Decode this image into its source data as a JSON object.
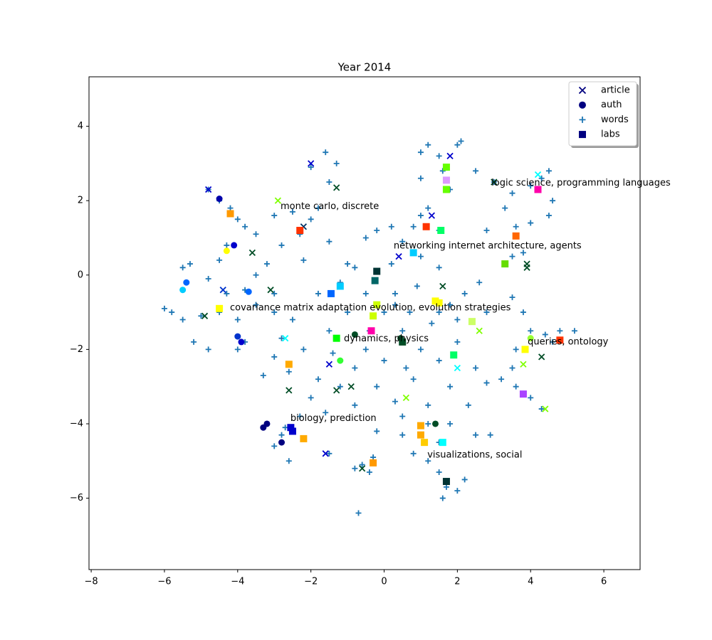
{
  "chart_data": {
    "type": "scatter",
    "title": "Year 2014",
    "xlim": [
      -8.06,
      6.99
    ],
    "ylim": [
      -7.92,
      5.33
    ],
    "xticks": [
      {
        "value": -8,
        "label": "−8"
      },
      {
        "value": -6,
        "label": "−6"
      },
      {
        "value": -4,
        "label": "−4"
      },
      {
        "value": -2,
        "label": "−2"
      },
      0,
      2,
      4,
      6
    ],
    "yticks": [
      {
        "value": -6,
        "label": "−6"
      },
      {
        "value": -4,
        "label": "−4"
      },
      {
        "value": -2,
        "label": "−2"
      },
      0,
      2,
      4
    ],
    "legend": "upper right",
    "series": [
      {
        "name": "article",
        "marker": "x",
        "color": "#000080",
        "x": [
          -4.8,
          -2,
          -1.3,
          1.8,
          3,
          3.9,
          3.9,
          4.3,
          4.4,
          3.8,
          -2.9,
          -2.2,
          -3.1,
          -3.6,
          -4.4,
          -1.5,
          -1.3,
          -2.6,
          -1.6,
          -0.6,
          0.6,
          1.6,
          2.6,
          -0.9,
          0.4,
          1.3,
          -4.9,
          2,
          -2.7,
          4.2
        ],
        "values": [
          2.3,
          3,
          2.35,
          3.2,
          2.5,
          0.3,
          0.2,
          -2.2,
          -3.6,
          -2.4,
          2,
          1.3,
          -0.4,
          0.6,
          -0.4,
          -2.4,
          -3.1,
          -3.1,
          -4.8,
          -5.2,
          -3.3,
          -0.3,
          -1.5,
          -3,
          0.5,
          1.6,
          -1.1,
          -2.5,
          -1.7,
          2.7
        ],
        "colors": [
          "#0000cc",
          "#0000cc",
          "#004d26",
          "#0000cc",
          "#004d26",
          "#004d26",
          "#004d26",
          "#004d26",
          "#7fff00",
          "#7fff00",
          "#7fff00",
          "#003366",
          "#004d26",
          "#004d26",
          "#0033cc",
          "#0000cc",
          "#004d26",
          "#004d26",
          "#0000cc",
          "#004d26",
          "#7fff00",
          "#004d26",
          "#7fff00",
          "#004d26",
          "#0000cc",
          "#0000cc",
          "#004d26",
          "#00ffff",
          "#00ffff",
          "#00ffff"
        ]
      },
      {
        "name": "auth",
        "marker": "o",
        "color": "#000080",
        "x": [
          -4.5,
          -4.1,
          -4,
          -3.9,
          -3.3,
          -3.2,
          -2.8,
          -4.3,
          -3.7,
          -1.2,
          -0.8,
          0.45,
          1.4,
          4,
          -5.4,
          -5.5
        ],
        "values": [
          2.05,
          0.8,
          -1.65,
          -1.8,
          -4.1,
          -4,
          -4.5,
          0.65,
          -0.45,
          -2.3,
          -1.6,
          -1.7,
          -4,
          -1.7,
          -0.2,
          -0.4
        ],
        "colors": [
          "#0000aa",
          "#0000cc",
          "#0033cc",
          "#0000cc",
          "#000080",
          "#000080",
          "#000080",
          "#ffff00",
          "#0066ff",
          "#33ff33",
          "#004d26",
          "#004d26",
          "#004d26",
          "#99ff33",
          "#0066ff",
          "#00ccff"
        ]
      },
      {
        "name": "words",
        "marker": "+",
        "color": "#1f77b4",
        "x": [
          0,
          0.5,
          1,
          -0.5,
          0.3,
          1.5,
          -1,
          0.8,
          -0.2,
          1.2,
          0.5,
          -0.8,
          2,
          2.5,
          1.8,
          -1.5,
          -1.8,
          -1,
          0.2,
          1,
          1.5,
          2.2,
          2.8,
          2.6,
          -2.5,
          -2.2,
          -1.2,
          0,
          1.3,
          0.7,
          -3,
          -3.5,
          -4,
          -4.5,
          -5,
          -5.5,
          -5.8,
          -6,
          -5.5,
          -5.3,
          -4.8,
          -4.3,
          -3.5,
          -3,
          -4,
          -4.8,
          -5.2,
          -3.8,
          -4.8,
          -4.5,
          -4.2,
          -4,
          -3.8,
          -4.3,
          -4.5,
          -3.5,
          -3,
          -2.5,
          -2,
          -1.8,
          -1.5,
          -1.3,
          -1.6,
          -2,
          -2.3,
          -2.8,
          -1.5,
          -0.8,
          -0.5,
          -0.2,
          0.2,
          0.5,
          1,
          1.2,
          1,
          1,
          1.2,
          1.5,
          1.6,
          1.8,
          2,
          2.1,
          2.5,
          1.5,
          0.8,
          3,
          3.5,
          4,
          4.3,
          4.5,
          4.6,
          4.5,
          4,
          3.6,
          3.5,
          3.8,
          3.3,
          2.8,
          3.5,
          3.8,
          4,
          4.4,
          4.8,
          5.2,
          4.6,
          3.6,
          3.2,
          3.6,
          4,
          4.3,
          2.8,
          3.5,
          1.2,
          1.5,
          1.2,
          1.5,
          1.7,
          2,
          1.6,
          2.2,
          0.8,
          2.5,
          2.9,
          0.5,
          -0.2,
          -2,
          -2.3,
          -2.7,
          -3.2,
          -3,
          -2.6,
          -2.8,
          -1.6,
          -1.5,
          -1.8,
          -2.6,
          -3,
          -0.6,
          -0.4,
          -0.3,
          -0.8,
          -0.7,
          -3.8,
          -3.2,
          -2.2,
          -1.2,
          -0.5,
          0.3,
          0.9,
          1.8,
          2,
          1.5,
          0.6,
          -0.4,
          -1.4,
          -2.8,
          -3.3,
          -0.8,
          0.3,
          1.8,
          2.3
        ],
        "values": [
          -1,
          -1.5,
          -2,
          -2,
          -0.5,
          -1,
          -1,
          -2.8,
          -3,
          -3.5,
          -3.8,
          -2.5,
          -1.8,
          -2.5,
          -3,
          -1.5,
          -0.5,
          0.3,
          0.3,
          0.5,
          0.2,
          -0.5,
          -1,
          -0.2,
          -1.2,
          -2,
          -3,
          -2.3,
          -1.3,
          -1,
          -1,
          -0.8,
          -1.2,
          -1,
          -1.1,
          -1.2,
          -1,
          -0.9,
          0.2,
          0.3,
          -0.1,
          -0.5,
          0,
          -0.5,
          -2,
          -2,
          -1.8,
          -1.8,
          2.3,
          2,
          1.8,
          1.5,
          1.3,
          0.8,
          0.4,
          1.1,
          1.6,
          1.7,
          1.5,
          1.8,
          2.5,
          3,
          3.3,
          2.9,
          1.1,
          0.8,
          0.9,
          0.2,
          1,
          1.2,
          1.3,
          0.9,
          1.6,
          1.8,
          2.6,
          3.3,
          3.5,
          3.2,
          2.8,
          2.3,
          3.5,
          3.6,
          2.8,
          1.2,
          1.3,
          2.5,
          2.2,
          2.4,
          2.6,
          2.8,
          2,
          1.6,
          1.4,
          1.3,
          0.5,
          0.6,
          1.8,
          1.2,
          -0.6,
          -1,
          -1.5,
          -1.6,
          -1.5,
          -1.5,
          -1.8,
          -2,
          -2.8,
          -3,
          -3.3,
          -3.6,
          -2.9,
          -2.5,
          -4,
          -4.5,
          -5,
          -5.3,
          -5.7,
          -5.8,
          -6,
          -5.5,
          -4.8,
          -4.3,
          -4.3,
          -4.3,
          -4.2,
          -3.3,
          -3.8,
          -4.1,
          -4,
          -4.6,
          -5,
          -4.3,
          -3.7,
          -4.8,
          -2.8,
          -2.6,
          -2.2,
          -5.1,
          -5.3,
          -4.9,
          -5.2,
          -6.4,
          -0.4,
          0.3,
          0.4,
          -0.2,
          -0.5,
          -0.8,
          -0.3,
          -0.8,
          -1.2,
          -2.3,
          -2.5,
          -1.5,
          -2.1,
          -1.7,
          -2.7,
          -3.5,
          -3.4,
          -4,
          -3.5
        ]
      },
      {
        "name": "labs",
        "marker": "s",
        "color": "#000080",
        "x": [
          4.2,
          1.7,
          1.7,
          1.7,
          1.15,
          1.55,
          3.6,
          3.3,
          -0.2,
          -0.25,
          -1.45,
          -1.2,
          -0.3,
          -0.35,
          -0.2,
          1.4,
          1.5,
          2.4,
          0.5,
          -1.3,
          0.8,
          3.8,
          4.8,
          -2.6,
          -2.5,
          -2.55,
          -2.2,
          1,
          1,
          1.1,
          1.6,
          1.7,
          -0.3,
          -4.2,
          -2.3,
          1.9,
          3.85,
          -4.5
        ],
        "values": [
          2.3,
          2.55,
          2.9,
          2.3,
          1.3,
          1.2,
          1.05,
          0.3,
          0.1,
          -0.15,
          -0.5,
          -0.3,
          -1.1,
          -1.5,
          -0.8,
          -0.7,
          -0.75,
          -1.25,
          -1.8,
          -1.7,
          0.6,
          -3.2,
          -1.75,
          -2.4,
          -4.2,
          -4.1,
          -4.4,
          -4.3,
          -4.05,
          -4.5,
          -4.5,
          -5.55,
          -5.05,
          1.65,
          1.2,
          -2.15,
          -2,
          -0.9
        ],
        "colors": [
          "#ff00aa",
          "#dd99ff",
          "#66ff00",
          "#66ff00",
          "#ff3300",
          "#00ff66",
          "#ff6600",
          "#66dd00",
          "#003333",
          "#006666",
          "#0066ff",
          "#00ccff",
          "#ccff00",
          "#ff00aa",
          "#ccff00",
          "#ffff00",
          "#ffff00",
          "#ccff66",
          "#004d26",
          "#00ff00",
          "#00ccff",
          "#aa44ff",
          "#ff3300",
          "#ffaa00",
          "#0000cc",
          "#0000cc",
          "#ffaa00",
          "#ffaa00",
          "#ffaa00",
          "#ffcc00",
          "#00ffff",
          "#003333",
          "#ff9900",
          "#ff9900",
          "#ff3300",
          "#00ff66",
          "#ffff00",
          "#ffff00"
        ]
      }
    ],
    "annotations": [
      {
        "text": "logic science, programming languages",
        "x": 2.93,
        "y": 2.47
      },
      {
        "text": "monte carlo, discrete",
        "x": -2.83,
        "y": 1.84
      },
      {
        "text": "networking internet architecture, agents",
        "x": 0.26,
        "y": 0.78
      },
      {
        "text": "covariance matrix adaptation evolution, evolution strategies",
        "x": -4.21,
        "y": -0.88
      },
      {
        "text": "dynamics, physics",
        "x": -1.1,
        "y": -1.72
      },
      {
        "text": "queries, ontology",
        "x": 3.92,
        "y": -1.8
      },
      {
        "text": "biology, prediction",
        "x": -2.56,
        "y": -3.86
      },
      {
        "text": "visualizations, social",
        "x": 1.18,
        "y": -4.84
      }
    ]
  }
}
